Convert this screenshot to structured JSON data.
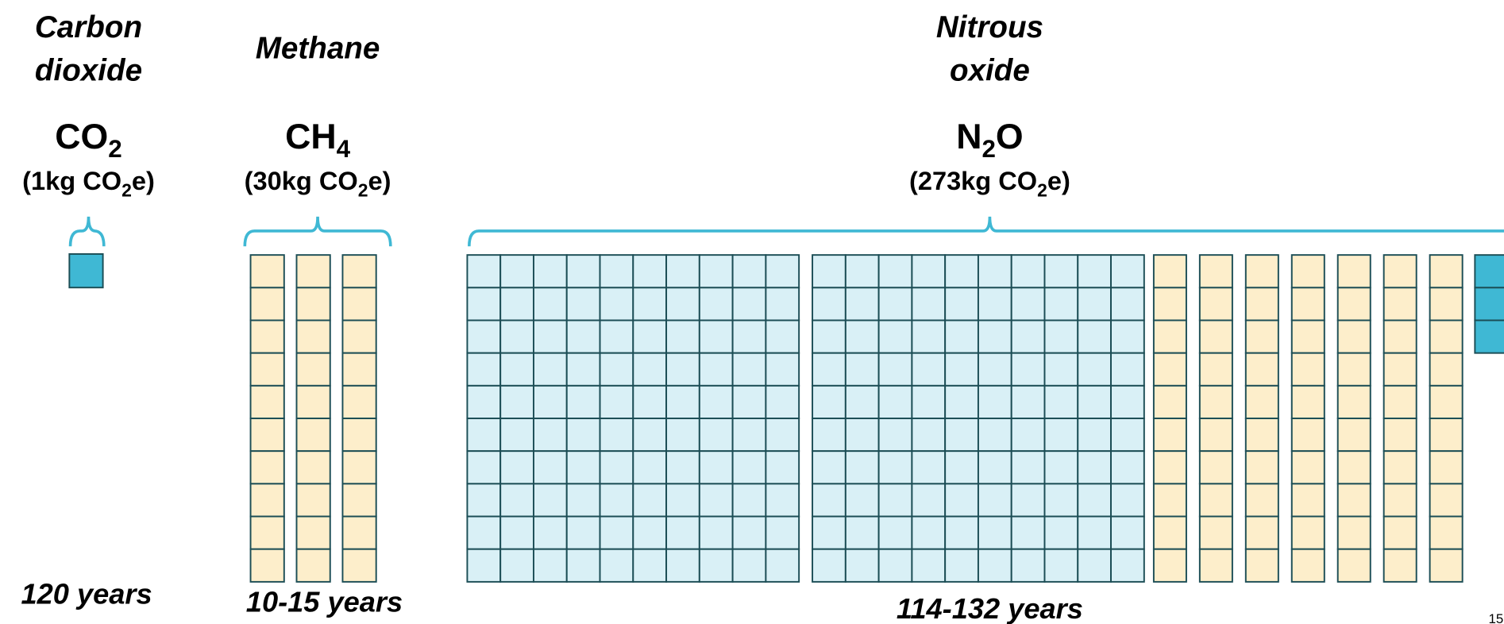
{
  "gases": [
    {
      "name": [
        "Carbon",
        "dioxide"
      ],
      "formula": [
        {
          "text": "CO"
        },
        {
          "text": "2",
          "sub": true
        }
      ],
      "equivalent": [
        {
          "text": "(1kg CO"
        },
        {
          "text": "2",
          "sub": true
        },
        {
          "text": "e)"
        }
      ],
      "lifetime": "120 years"
    },
    {
      "name": [
        "Methane"
      ],
      "formula": [
        {
          "text": "CH"
        },
        {
          "text": "4",
          "sub": true
        }
      ],
      "equivalent": [
        {
          "text": "(30kg CO"
        },
        {
          "text": "2",
          "sub": true
        },
        {
          "text": "e)"
        }
      ],
      "lifetime": "10-15 years"
    },
    {
      "name": [
        "Nitrous",
        "oxide"
      ],
      "formula": [
        {
          "text": "N"
        },
        {
          "text": "2",
          "sub": true
        },
        {
          "text": "O"
        }
      ],
      "equivalent": [
        {
          "text": "(273kg CO"
        },
        {
          "text": "2",
          "sub": true
        },
        {
          "text": "e)"
        }
      ],
      "lifetime": "114-132 years"
    }
  ],
  "page_number": "15"
}
